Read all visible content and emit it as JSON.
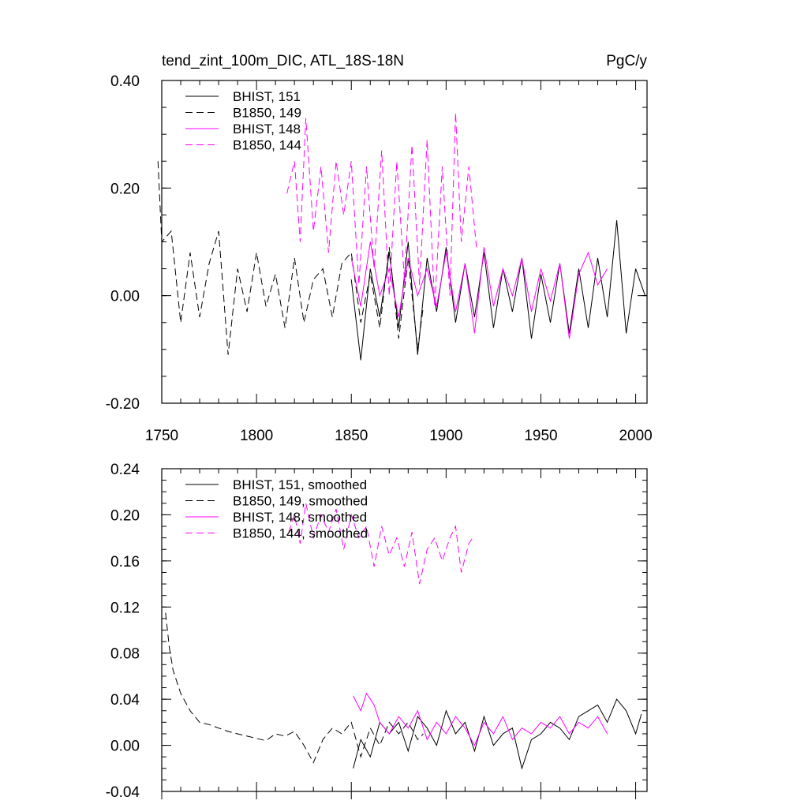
{
  "chart_data": [
    {
      "type": "line",
      "title": "tend_zint_100m_DIC, ATL_18S-18N",
      "units": "PgC/y",
      "xlim": [
        1750,
        2006
      ],
      "ylim": [
        -0.2,
        0.4
      ],
      "x_ticks": [
        "1750",
        "1800",
        "1850",
        "1900",
        "1950",
        "2000"
      ],
      "y_ticks": [
        "-0.20",
        "0.00",
        "0.20",
        "0.40"
      ],
      "grid": false,
      "legend_position": "top-left",
      "series": [
        {
          "name": "BHIST, 151",
          "color": "#000000",
          "dash": "solid",
          "x": [
            1850,
            1855,
            1860,
            1865,
            1870,
            1875,
            1880,
            1885,
            1890,
            1895,
            1900,
            1905,
            1910,
            1915,
            1920,
            1925,
            1930,
            1935,
            1940,
            1945,
            1950,
            1955,
            1960,
            1965,
            1970,
            1975,
            1980,
            1985,
            1990,
            1995,
            2000,
            2005
          ],
          "y": [
            0.03,
            -0.12,
            0.05,
            -0.04,
            0.08,
            -0.06,
            0.1,
            -0.11,
            0.07,
            -0.03,
            0.09,
            -0.05,
            0.06,
            -0.04,
            0.08,
            -0.06,
            0.05,
            -0.03,
            0.07,
            -0.08,
            0.04,
            -0.05,
            0.06,
            -0.07,
            0.05,
            -0.06,
            0.07,
            -0.04,
            0.14,
            -0.07,
            0.05,
            0.0
          ]
        },
        {
          "name": "B1850, 149",
          "color": "#000000",
          "dash": "dashed",
          "x": [
            1748,
            1750,
            1755,
            1760,
            1765,
            1770,
            1775,
            1780,
            1785,
            1790,
            1795,
            1800,
            1805,
            1810,
            1815,
            1820,
            1825,
            1830,
            1835,
            1840,
            1845,
            1850,
            1855,
            1860,
            1865,
            1870,
            1875,
            1880,
            1885,
            1888
          ],
          "y": [
            0.25,
            0.1,
            0.12,
            -0.05,
            0.08,
            -0.04,
            0.06,
            0.12,
            -0.11,
            0.05,
            -0.03,
            0.08,
            -0.02,
            0.04,
            -0.06,
            0.07,
            -0.05,
            0.03,
            0.05,
            -0.04,
            0.06,
            0.08,
            -0.05,
            0.04,
            -0.06,
            0.09,
            -0.08,
            0.07,
            -0.1,
            -0.02
          ]
        },
        {
          "name": "BHIST, 148",
          "color": "#ff00ff",
          "dash": "solid",
          "x": [
            1850,
            1855,
            1860,
            1865,
            1870,
            1875,
            1880,
            1885,
            1890,
            1895,
            1900,
            1905,
            1910,
            1915,
            1920,
            1925,
            1930,
            1935,
            1940,
            1945,
            1950,
            1955,
            1960,
            1965,
            1970,
            1975,
            1980,
            1985
          ],
          "y": [
            0.07,
            -0.02,
            0.1,
            0.0,
            0.05,
            -0.04,
            0.07,
            0.0,
            0.05,
            -0.02,
            0.08,
            -0.03,
            0.06,
            -0.07,
            0.09,
            -0.02,
            0.05,
            0.0,
            0.07,
            -0.03,
            0.05,
            -0.01,
            0.06,
            -0.08,
            0.04,
            0.08,
            0.02,
            0.05
          ]
        },
        {
          "name": "B1850, 144",
          "color": "#ff00ff",
          "dash": "dashed",
          "x": [
            1816,
            1820,
            1823,
            1826,
            1830,
            1834,
            1838,
            1842,
            1846,
            1850,
            1854,
            1858,
            1862,
            1866,
            1870,
            1874,
            1878,
            1882,
            1886,
            1890,
            1894,
            1898,
            1902,
            1905,
            1908,
            1912,
            1916
          ],
          "y": [
            0.19,
            0.25,
            0.1,
            0.33,
            0.12,
            0.24,
            0.08,
            0.25,
            0.15,
            0.25,
            0.02,
            0.24,
            0.05,
            0.27,
            0.0,
            0.25,
            0.03,
            0.28,
            0.02,
            0.29,
            -0.02,
            0.24,
            0.0,
            0.34,
            0.1,
            0.24,
            0.09
          ]
        }
      ]
    },
    {
      "type": "line",
      "title": "",
      "xlim": [
        1750,
        2006
      ],
      "ylim": [
        -0.04,
        0.24
      ],
      "x_ticks": [],
      "y_ticks": [
        "-0.04",
        "0.00",
        "0.04",
        "0.08",
        "0.12",
        "0.16",
        "0.20",
        "0.24"
      ],
      "grid": false,
      "legend_position": "top-left",
      "series": [
        {
          "name": "BHIST, 151, smoothed",
          "color": "#000000",
          "dash": "solid",
          "x": [
            1851,
            1855,
            1860,
            1865,
            1870,
            1875,
            1880,
            1885,
            1890,
            1895,
            1900,
            1905,
            1910,
            1915,
            1920,
            1925,
            1930,
            1935,
            1940,
            1945,
            1950,
            1955,
            1960,
            1965,
            1970,
            1975,
            1980,
            1985,
            1990,
            1995,
            2000,
            2003
          ],
          "y": [
            -0.02,
            0.005,
            -0.01,
            0.02,
            0.01,
            0.02,
            -0.005,
            0.025,
            0.015,
            0.0,
            0.03,
            0.01,
            0.02,
            -0.005,
            0.025,
            0.0,
            0.01,
            0.015,
            -0.02,
            0.005,
            0.01,
            0.02,
            0.015,
            0.005,
            0.025,
            0.03,
            0.035,
            0.02,
            0.04,
            0.03,
            0.01,
            0.027
          ]
        },
        {
          "name": "B1850, 149, smoothed",
          "color": "#000000",
          "dash": "dashed",
          "x": [
            1752,
            1754,
            1756,
            1760,
            1765,
            1770,
            1775,
            1780,
            1785,
            1790,
            1795,
            1800,
            1805,
            1810,
            1815,
            1820,
            1825,
            1830,
            1835,
            1840,
            1845,
            1850,
            1855,
            1860,
            1865,
            1870,
            1875,
            1880,
            1885,
            1888
          ],
          "y": [
            0.115,
            0.085,
            0.065,
            0.045,
            0.03,
            0.02,
            0.018,
            0.015,
            0.012,
            0.01,
            0.008,
            0.006,
            0.004,
            0.01,
            0.008,
            0.012,
            0.0,
            -0.015,
            0.005,
            0.015,
            0.01,
            0.02,
            -0.01,
            0.015,
            0.0,
            0.02,
            0.01,
            0.02,
            0.005,
            0.01
          ]
        },
        {
          "name": "BHIST, 148, smoothed",
          "color": "#ff00ff",
          "dash": "solid",
          "x": [
            1851,
            1855,
            1858,
            1862,
            1865,
            1870,
            1875,
            1880,
            1885,
            1890,
            1895,
            1900,
            1905,
            1910,
            1915,
            1920,
            1925,
            1930,
            1935,
            1940,
            1945,
            1950,
            1955,
            1960,
            1965,
            1970,
            1975,
            1980,
            1985
          ],
          "y": [
            0.043,
            0.03,
            0.045,
            0.035,
            0.02,
            0.01,
            0.025,
            0.015,
            0.03,
            0.005,
            0.02,
            0.01,
            0.025,
            0.015,
            0.0,
            0.02,
            0.01,
            0.025,
            0.005,
            0.015,
            0.01,
            0.02,
            0.015,
            0.025,
            0.01,
            0.02,
            0.015,
            0.025,
            0.01
          ]
        },
        {
          "name": "B1850, 144, smoothed",
          "color": "#ff00ff",
          "dash": "dashed",
          "x": [
            1817,
            1820,
            1823,
            1826,
            1830,
            1834,
            1838,
            1842,
            1846,
            1850,
            1854,
            1858,
            1862,
            1866,
            1870,
            1874,
            1878,
            1882,
            1886,
            1890,
            1894,
            1898,
            1902,
            1905,
            1908,
            1912,
            1914
          ],
          "y": [
            0.185,
            0.2,
            0.175,
            0.21,
            0.18,
            0.2,
            0.185,
            0.205,
            0.17,
            0.2,
            0.18,
            0.19,
            0.155,
            0.19,
            0.165,
            0.18,
            0.155,
            0.185,
            0.14,
            0.17,
            0.18,
            0.16,
            0.18,
            0.19,
            0.15,
            0.175,
            0.18
          ]
        }
      ]
    }
  ]
}
